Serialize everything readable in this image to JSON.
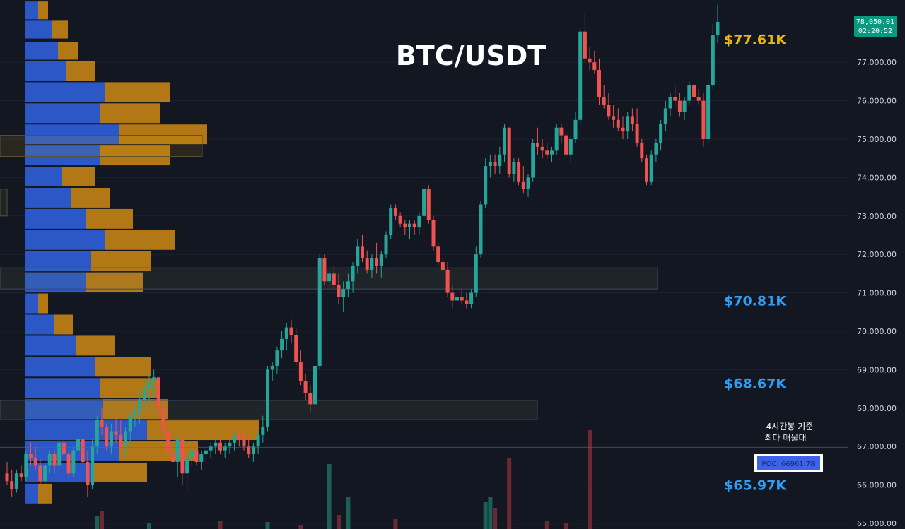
{
  "chart_data": {
    "type": "candlestick",
    "title": "BTC/USDT",
    "y_axis": {
      "ticks": [
        "77,000.00",
        "76,000.00",
        "75,000.00",
        "74,000.00",
        "73,000.00",
        "72,000.00",
        "71,000.00",
        "70,000.00",
        "69,000.00",
        "68,000.00",
        "67,000.00",
        "66,000.00",
        "65,000.00"
      ],
      "range": [
        64900,
        78600
      ]
    },
    "last_price": {
      "value": "78,050.01",
      "countdown": "02:20:52",
      "color": "#089981"
    },
    "zones": [
      {
        "label": "$77.61K",
        "color": "#f0b90b",
        "top": 77850,
        "bottom": 77350
      },
      {
        "label": "$70.81K",
        "color": "#2f9ef5",
        "top": 71000,
        "bottom": 70550
      },
      {
        "label": "$68.67K",
        "color": "#2f9ef5",
        "top": 68850,
        "bottom": 68350
      },
      {
        "label": "$65.97K",
        "color": "#2f9ef5",
        "top": 66200,
        "bottom": 65650
      }
    ],
    "poc": {
      "label": "POC: 66961.78",
      "value": 66961.78,
      "note_lines": [
        "4시간봉 기준",
        "최다 매물대"
      ],
      "line_color": "#e53935"
    },
    "candles": [
      [
        66300,
        66600,
        66000,
        66100
      ],
      [
        66100,
        66400,
        65700,
        65900
      ],
      [
        65900,
        66400,
        65800,
        66300
      ],
      [
        66300,
        66500,
        66100,
        66200
      ],
      [
        66200,
        66900,
        66100,
        66800
      ],
      [
        66800,
        67100,
        66500,
        66700
      ],
      [
        66700,
        67000,
        66400,
        66500
      ],
      [
        66500,
        66700,
        66000,
        66100
      ],
      [
        66100,
        66600,
        66000,
        66500
      ],
      [
        66500,
        66900,
        66300,
        66800
      ],
      [
        66800,
        66900,
        66300,
        66500
      ],
      [
        66500,
        67200,
        66400,
        67100
      ],
      [
        67100,
        67300,
        66700,
        66800
      ],
      [
        66800,
        66900,
        66200,
        66300
      ],
      [
        66300,
        67000,
        66200,
        66900
      ],
      [
        66900,
        67300,
        66700,
        67200
      ],
      [
        67200,
        67100,
        66500,
        66600
      ],
      [
        66600,
        66900,
        65700,
        66000
      ],
      [
        66000,
        67200,
        65900,
        67000
      ],
      [
        67000,
        67800,
        66800,
        67700
      ],
      [
        67700,
        68000,
        67300,
        67500
      ],
      [
        67500,
        67600,
        66900,
        67000
      ],
      [
        67000,
        67600,
        66800,
        67400
      ],
      [
        67400,
        67800,
        67100,
        67300
      ],
      [
        67300,
        67700,
        66900,
        67000
      ],
      [
        67000,
        67500,
        66700,
        67400
      ],
      [
        67400,
        67900,
        67000,
        67800
      ],
      [
        67800,
        68100,
        67500,
        67900
      ],
      [
        67900,
        68400,
        67600,
        68200
      ],
      [
        68200,
        68700,
        68000,
        68500
      ],
      [
        68500,
        68900,
        68100,
        68700
      ],
      [
        68700,
        69000,
        68300,
        68800
      ],
      [
        68800,
        68800,
        67800,
        68000
      ],
      [
        68000,
        68200,
        67200,
        67400
      ],
      [
        67400,
        67500,
        66700,
        66800
      ],
      [
        66800,
        67000,
        66500,
        66600
      ],
      [
        66600,
        67300,
        66200,
        67200
      ],
      [
        67200,
        67300,
        66000,
        66300
      ],
      [
        66300,
        66800,
        65800,
        66700
      ],
      [
        66700,
        67000,
        66500,
        66900
      ],
      [
        66900,
        67100,
        66500,
        66600
      ],
      [
        66600,
        66900,
        66400,
        66800
      ],
      [
        66800,
        67000,
        66600,
        66900
      ],
      [
        66900,
        67100,
        66700,
        67000
      ],
      [
        67000,
        67200,
        66800,
        67100
      ],
      [
        67100,
        67300,
        66800,
        66900
      ],
      [
        66900,
        67100,
        66700,
        67000
      ],
      [
        67000,
        67200,
        66800,
        67100
      ],
      [
        67100,
        67400,
        66900,
        67300
      ],
      [
        67300,
        67500,
        67000,
        67200
      ],
      [
        67200,
        67400,
        66900,
        67000
      ],
      [
        67000,
        67300,
        66700,
        66800
      ],
      [
        66800,
        67100,
        66600,
        67000
      ],
      [
        67000,
        67400,
        66800,
        67300
      ],
      [
        67300,
        67800,
        67100,
        67500
      ],
      [
        67500,
        69100,
        67400,
        69000
      ],
      [
        69000,
        69200,
        68700,
        69100
      ],
      [
        69100,
        69600,
        68900,
        69500
      ],
      [
        69500,
        70000,
        69300,
        69800
      ],
      [
        69800,
        70200,
        69500,
        70100
      ],
      [
        70100,
        70300,
        69700,
        69900
      ],
      [
        69900,
        70100,
        69100,
        69200
      ],
      [
        69200,
        69500,
        68600,
        68700
      ],
      [
        68700,
        68900,
        68200,
        68400
      ],
      [
        68400,
        68600,
        67900,
        68100
      ],
      [
        68100,
        69300,
        68000,
        69100
      ],
      [
        69100,
        72000,
        69000,
        71900
      ],
      [
        71900,
        72000,
        71200,
        71300
      ],
      [
        71300,
        71600,
        71000,
        71500
      ],
      [
        71500,
        71700,
        71100,
        71200
      ],
      [
        71200,
        71500,
        70700,
        70900
      ],
      [
        70900,
        71300,
        70500,
        71100
      ],
      [
        71100,
        71500,
        70900,
        71300
      ],
      [
        71300,
        71800,
        71000,
        71700
      ],
      [
        71700,
        72400,
        71500,
        72200
      ],
      [
        72200,
        72500,
        71800,
        71900
      ],
      [
        71900,
        72100,
        71500,
        71600
      ],
      [
        71600,
        72000,
        71400,
        71900
      ],
      [
        71900,
        72300,
        71500,
        71700
      ],
      [
        71700,
        72100,
        71400,
        72000
      ],
      [
        72000,
        72600,
        71900,
        72500
      ],
      [
        72500,
        73300,
        72400,
        73200
      ],
      [
        73200,
        73300,
        72900,
        73000
      ],
      [
        73000,
        73100,
        72700,
        72800
      ],
      [
        72800,
        72900,
        72500,
        72700
      ],
      [
        72700,
        72900,
        72400,
        72800
      ],
      [
        72800,
        72900,
        72500,
        72700
      ],
      [
        72700,
        73100,
        72500,
        73000
      ],
      [
        73000,
        73800,
        72900,
        73700
      ],
      [
        73700,
        73800,
        72800,
        72900
      ],
      [
        72900,
        73000,
        72100,
        72200
      ],
      [
        72200,
        72300,
        71700,
        71800
      ],
      [
        71800,
        71900,
        71400,
        71600
      ],
      [
        71600,
        71800,
        70900,
        71000
      ],
      [
        71000,
        71200,
        70600,
        70800
      ],
      [
        70800,
        71000,
        70600,
        70900
      ],
      [
        70900,
        71100,
        70700,
        70800
      ],
      [
        70800,
        71000,
        70600,
        70700
      ],
      [
        70700,
        71100,
        70600,
        71000
      ],
      [
        71000,
        72200,
        70900,
        72000
      ],
      [
        72000,
        73400,
        71900,
        73300
      ],
      [
        73300,
        74500,
        73200,
        74300
      ],
      [
        74300,
        74600,
        74000,
        74400
      ],
      [
        74400,
        74600,
        74100,
        74300
      ],
      [
        74300,
        74800,
        74100,
        74600
      ],
      [
        74600,
        75400,
        74400,
        75300
      ],
      [
        75300,
        75300,
        74000,
        74100
      ],
      [
        74100,
        74500,
        73900,
        74400
      ],
      [
        74400,
        74500,
        73800,
        73900
      ],
      [
        73900,
        74300,
        73600,
        73700
      ],
      [
        73700,
        74100,
        73500,
        74000
      ],
      [
        74000,
        75000,
        73900,
        74900
      ],
      [
        74900,
        75300,
        74600,
        74800
      ],
      [
        74800,
        75000,
        74500,
        74700
      ],
      [
        74700,
        74900,
        74500,
        74600
      ],
      [
        74600,
        74800,
        74400,
        74700
      ],
      [
        74700,
        75400,
        74600,
        75300
      ],
      [
        75300,
        75400,
        74900,
        75100
      ],
      [
        75100,
        75200,
        74500,
        74600
      ],
      [
        74600,
        75100,
        74400,
        75000
      ],
      [
        75000,
        75700,
        74900,
        75500
      ],
      [
        75500,
        77900,
        75400,
        77800
      ],
      [
        77800,
        78300,
        77000,
        77100
      ],
      [
        77100,
        77400,
        76800,
        77000
      ],
      [
        77000,
        77300,
        76700,
        76800
      ],
      [
        76800,
        77100,
        75900,
        76100
      ],
      [
        76100,
        76400,
        75800,
        75900
      ],
      [
        75900,
        76200,
        75500,
        75600
      ],
      [
        75600,
        75900,
        75300,
        75500
      ],
      [
        75500,
        75800,
        75200,
        75300
      ],
      [
        75300,
        75600,
        75000,
        75200
      ],
      [
        75200,
        75700,
        75000,
        75600
      ],
      [
        75600,
        75800,
        75200,
        75400
      ],
      [
        75400,
        75800,
        74800,
        74900
      ],
      [
        74900,
        75000,
        74400,
        74500
      ],
      [
        74500,
        74600,
        73800,
        73900
      ],
      [
        73900,
        74700,
        73800,
        74600
      ],
      [
        74600,
        75000,
        74400,
        74900
      ],
      [
        74900,
        75500,
        74700,
        75400
      ],
      [
        75400,
        76000,
        75200,
        75800
      ],
      [
        75800,
        76200,
        75600,
        76100
      ],
      [
        76100,
        76400,
        75800,
        76000
      ],
      [
        76000,
        76200,
        75600,
        75700
      ],
      [
        75700,
        76100,
        75500,
        76000
      ],
      [
        76000,
        76500,
        75900,
        76400
      ],
      [
        76400,
        76600,
        76000,
        76100
      ],
      [
        76100,
        76300,
        75900,
        76000
      ],
      [
        76000,
        76200,
        74800,
        75000
      ],
      [
        75000,
        76500,
        74900,
        76400
      ],
      [
        76400,
        78000,
        76300,
        77700
      ],
      [
        77700,
        78500,
        77500,
        78050
      ]
    ],
    "volume": [
      {
        "i": 19,
        "v": 18
      },
      {
        "i": 20,
        "v": 25
      },
      {
        "i": 30,
        "v": 8
      },
      {
        "i": 45,
        "v": 12
      },
      {
        "i": 55,
        "v": 10
      },
      {
        "i": 62,
        "v": 6
      },
      {
        "i": 68,
        "v": 92
      },
      {
        "i": 70,
        "v": 20
      },
      {
        "i": 72,
        "v": 45
      },
      {
        "i": 82,
        "v": 14
      },
      {
        "i": 101,
        "v": 38
      },
      {
        "i": 102,
        "v": 45
      },
      {
        "i": 103,
        "v": 30
      },
      {
        "i": 106,
        "v": 100
      },
      {
        "i": 114,
        "v": 12
      },
      {
        "i": 118,
        "v": 8
      },
      {
        "i": 123,
        "v": 140
      }
    ],
    "volume_profile": [
      {
        "bot": 78100,
        "top": 78600,
        "buy": 18,
        "sell": 14
      },
      {
        "bot": 77600,
        "top": 78100,
        "buy": 38,
        "sell": 22
      },
      {
        "bot": 77050,
        "top": 77550,
        "buy": 46,
        "sell": 28
      },
      {
        "bot": 76500,
        "top": 77050,
        "buy": 58,
        "sell": 40
      },
      {
        "bot": 75950,
        "top": 76500,
        "buy": 112,
        "sell": 92
      },
      {
        "bot": 75400,
        "top": 75950,
        "buy": 105,
        "sell": 86
      },
      {
        "bot": 74850,
        "top": 75400,
        "buy": 132,
        "sell": 125
      },
      {
        "bot": 74300,
        "top": 74850,
        "buy": 105,
        "sell": 100
      },
      {
        "bot": 73750,
        "top": 74300,
        "buy": 52,
        "sell": 46
      },
      {
        "bot": 73200,
        "top": 73750,
        "buy": 65,
        "sell": 54
      },
      {
        "bot": 72650,
        "top": 73200,
        "buy": 85,
        "sell": 67
      },
      {
        "bot": 72100,
        "top": 72650,
        "buy": 112,
        "sell": 100
      },
      {
        "bot": 71550,
        "top": 72100,
        "buy": 92,
        "sell": 86
      },
      {
        "bot": 71000,
        "top": 71550,
        "buy": 86,
        "sell": 80
      },
      {
        "bot": 70450,
        "top": 71000,
        "buy": 18,
        "sell": 14
      },
      {
        "bot": 69900,
        "top": 70450,
        "buy": 40,
        "sell": 27
      },
      {
        "bot": 69350,
        "top": 69900,
        "buy": 72,
        "sell": 54
      },
      {
        "bot": 68800,
        "top": 69350,
        "buy": 98,
        "sell": 80
      },
      {
        "bot": 68250,
        "top": 68800,
        "buy": 105,
        "sell": 86
      },
      {
        "bot": 67700,
        "top": 68250,
        "buy": 110,
        "sell": 92
      },
      {
        "bot": 67150,
        "top": 67700,
        "buy": 172,
        "sell": 158
      },
      {
        "bot": 66600,
        "top": 67150,
        "buy": 132,
        "sell": 112
      },
      {
        "bot": 66050,
        "top": 66600,
        "buy": 92,
        "sell": 80
      },
      {
        "bot": 65500,
        "top": 66050,
        "buy": 18,
        "sell": 20
      }
    ]
  }
}
